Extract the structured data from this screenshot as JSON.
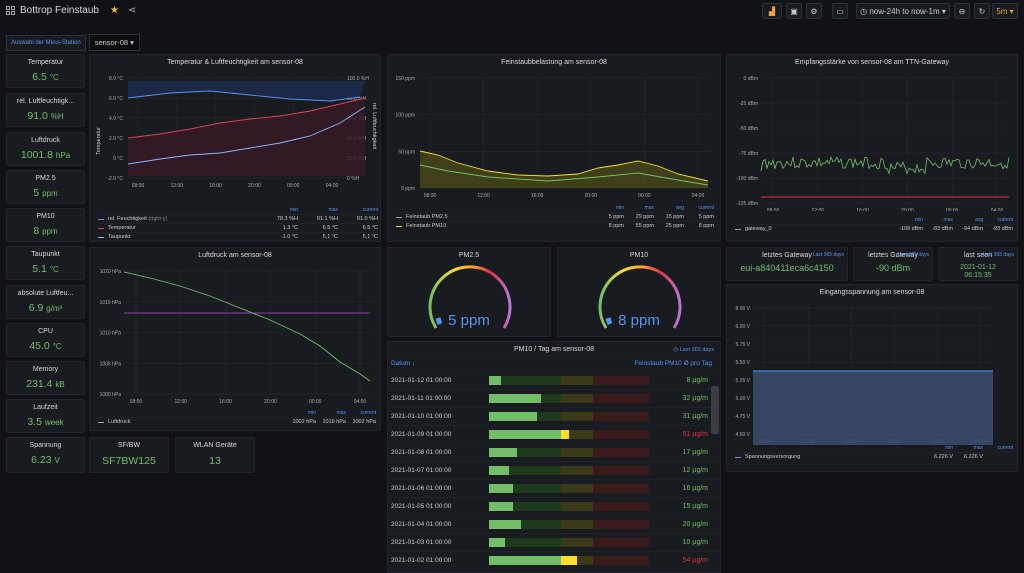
{
  "header": {
    "title": "Bottrop Feinstaub",
    "time_range": "now-24h to now-1m",
    "refresh": "5m"
  },
  "variables": {
    "label": "Auswahl der Mess-Station",
    "value": "sensor-08"
  },
  "stats_left": [
    {
      "title": "Temperatur",
      "value": "6.5",
      "unit": "°C"
    },
    {
      "title": "rel. Luftfeuchtigk...",
      "value": "91.0",
      "unit": "%H"
    },
    {
      "title": "Luftdruck",
      "value": "1001.8",
      "unit": "hPa"
    },
    {
      "title": "PM2.5",
      "value": "5",
      "unit": "ppm"
    },
    {
      "title": "PM10",
      "value": "8",
      "unit": "ppm"
    },
    {
      "title": "Taupunkt",
      "value": "5.1",
      "unit": "°C"
    },
    {
      "title": "absolute Luftfeu...",
      "value": "6.9",
      "unit": "g/m³"
    },
    {
      "title": "CPU",
      "value": "45.0",
      "unit": "°C"
    },
    {
      "title": "Memory",
      "value": "231.4",
      "unit": "kB"
    },
    {
      "title": "Laufzeit",
      "value": "3.5",
      "unit": "week"
    },
    {
      "title": "Spannung",
      "value": "6.23",
      "unit": "V"
    }
  ],
  "sfbw": {
    "title": "SF/BW",
    "value": "SF7BW125"
  },
  "wlan": {
    "title": "WLAN Geräte",
    "value": "13"
  },
  "temp_panel": {
    "title": "Temperatur & Luftfeuchtigkeit am sensor-08",
    "y_left": [
      "8.0 °C",
      "6.0 °C",
      "4.0 °C",
      "2.0 °C",
      "0 °C",
      "-2.0 °C"
    ],
    "y_right": [
      "100.0 %H",
      "80.0 %H",
      "60.0 %H",
      "40.0 %H",
      "20.0 %H",
      "0 %H"
    ],
    "ylabel_left": "Temperatur",
    "ylabel_right": "rel. Luftfeuchtigkeit",
    "x": [
      "08:00",
      "12:00",
      "16:00",
      "20:00",
      "00:00",
      "04:00"
    ],
    "legend_head": [
      "min",
      "max",
      "current"
    ],
    "legend": [
      {
        "name": "rel. Feuchtigkeit",
        "suffix": "(right-y)",
        "color": "#5794f2",
        "min": "78.3 %H",
        "max": "91.1 %H",
        "current": "91.0 %H"
      },
      {
        "name": "Temperatur",
        "suffix": "",
        "color": "#e0405a",
        "min": "1.3 °C",
        "max": "6.5 °C",
        "current": "6.5 °C"
      },
      {
        "name": "Taupunkt",
        "suffix": "",
        "color": "#8ab8ff",
        "min": "-1.0 °C",
        "max": "5.1 °C",
        "current": "5.1 °C"
      }
    ]
  },
  "fs_panel": {
    "title": "Feinstaubbelastung am sensor-08",
    "y": [
      "150 ppm",
      "100 ppm",
      "50 ppm",
      "0 ppm"
    ],
    "x": [
      "08:00",
      "12:00",
      "16:00",
      "20:00",
      "00:00",
      "04:00"
    ],
    "legend_head": [
      "min",
      "max",
      "avg",
      "current"
    ],
    "legend": [
      {
        "name": "Feinstaub PM2.5",
        "color": "#73bf69",
        "min": "5 ppm",
        "max": "29 ppm",
        "avg": "15 ppm",
        "current": "5 ppm"
      },
      {
        "name": "Feinstaub PM10",
        "color": "#fade2a",
        "min": "8 ppm",
        "max": "55 ppm",
        "avg": "25 ppm",
        "current": "8 ppm"
      }
    ]
  },
  "rssi_panel": {
    "title": "Empfangsstärke von sensor-08 am TTN-Gateway",
    "y": [
      "0 dBm",
      "-25 dBm",
      "-50 dBm",
      "-75 dBm",
      "-100 dBm",
      "-125 dBm"
    ],
    "x": [
      "08:00",
      "12:00",
      "16:00",
      "20:00",
      "00:00",
      "04:00"
    ],
    "legend_head": [
      "min",
      "max",
      "avg",
      "current"
    ],
    "legend": [
      {
        "name": "gateway_0",
        "color": "#73bf69",
        "min": "-108 dBm",
        "max": "-83 dBm",
        "avg": "-94 dBm",
        "current": "-93 dBm"
      }
    ]
  },
  "gateway_stats": [
    {
      "title": "letztes Gateway",
      "tag": "Last 365 days",
      "value": "eui-a840411eca6c4150"
    },
    {
      "title": "letztes Gateway",
      "tag": "Last 365 days",
      "value": "-90 dBm"
    },
    {
      "title": "last seen",
      "tag": "Last 365 days",
      "value": "2021-01-12\n06:15:35"
    }
  ],
  "pressure_panel": {
    "title": "Luftdruck am sensor-08",
    "y": [
      "1020 hPa",
      "1015 hPa",
      "1010 hPa",
      "1005 hPa",
      "1000 hPa"
    ],
    "x": [
      "08:00",
      "12:00",
      "16:00",
      "20:00",
      "00:00",
      "04:00"
    ],
    "legend_head": [
      "min",
      "max",
      "current"
    ],
    "legend": [
      {
        "name": "Luftdruck",
        "color": "#73bf69",
        "min": "1002 hPa",
        "max": "1019 hPa",
        "current": "1002 hPa"
      }
    ]
  },
  "gauges": [
    {
      "title": "PM2.5",
      "value": "5 ppm"
    },
    {
      "title": "PM10",
      "value": "8 ppm"
    }
  ],
  "voltage_panel": {
    "title": "Eingangsspannung am sensor-08",
    "y": [
      "6.00 V",
      "5.75 V",
      "5.50 V",
      "5.25 V",
      "5.00 V",
      "4.75 V",
      "4.50 V"
    ],
    "y_top": "8.00 V",
    "x": [
      "08:00",
      "12:00",
      "16:00",
      "20:00",
      "00:00",
      "04:00"
    ],
    "legend_head": [
      "min",
      "max",
      "current"
    ],
    "legend": [
      {
        "name": "Spannungsversorgung",
        "color": "#5794f2",
        "min": "6.226 V",
        "max": "6.226 V",
        "current": ""
      }
    ]
  },
  "table_panel": {
    "title": "PM10 / Tag am sensor-08",
    "tag": "Last 365 days",
    "col1": "Datum ↓",
    "col2": "Feinstaub PM10 Ø pro Tag",
    "rows": [
      {
        "date": "2021-01-12 01:00:00",
        "value": "8 µg/m",
        "frac": 0.08
      },
      {
        "date": "2021-01-11 01:00:00",
        "value": "32 µg/m",
        "frac": 0.32
      },
      {
        "date": "2021-01-10 01:00:00",
        "value": "31 µg/m",
        "frac": 0.31
      },
      {
        "date": "2021-01-09 01:00:00",
        "value": "51 µg/m",
        "frac": 0.51
      },
      {
        "date": "2021-01-08 01:00:00",
        "value": "17 µg/m",
        "frac": 0.17
      },
      {
        "date": "2021-01-07 01:00:00",
        "value": "12 µg/m",
        "frac": 0.12
      },
      {
        "date": "2021-01-06 01:00:00",
        "value": "16 µg/m",
        "frac": 0.16
      },
      {
        "date": "2021-01-05 01:00:00",
        "value": "15 µg/m",
        "frac": 0.15
      },
      {
        "date": "2021-01-04 01:00:00",
        "value": "20 µg/m",
        "frac": 0.2
      },
      {
        "date": "2021-01-03 01:00:00",
        "value": "10 µg/m",
        "frac": 0.1
      },
      {
        "date": "2021-01-02 01:00:00",
        "value": "54 µg/m",
        "frac": 0.54
      }
    ]
  },
  "colors": {
    "green": "#73bf69",
    "blue": "#5794f2",
    "red": "#e0405a",
    "yellow": "#fade2a",
    "bg": "#111217",
    "panel": "#181b1f"
  }
}
